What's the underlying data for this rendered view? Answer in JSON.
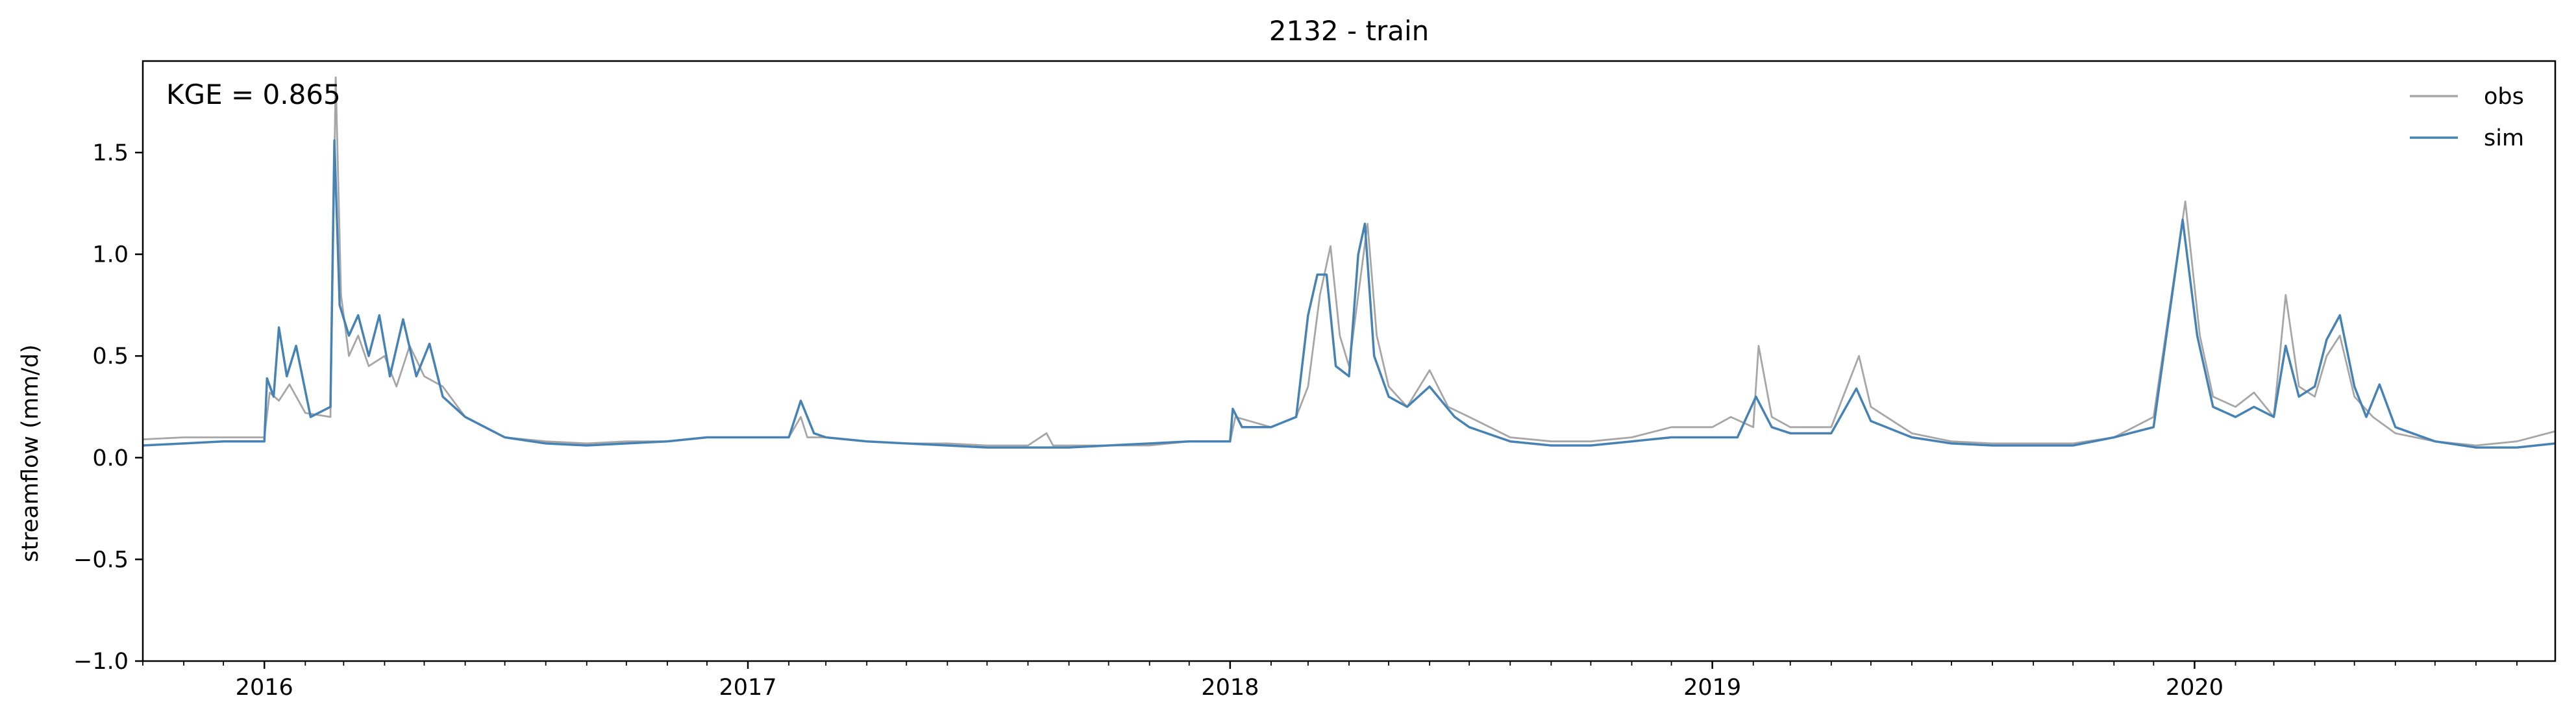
{
  "chart_data": {
    "type": "line",
    "title": "2132 - train",
    "ylabel": "streamflow (mm/d)",
    "xlabel": "",
    "ylim": [
      -1.0,
      1.95
    ],
    "xlim": [
      "2015-10-01",
      "2020-09-30"
    ],
    "yticks": [
      -1.0,
      -0.5,
      0.0,
      0.5,
      1.0,
      1.5
    ],
    "ytick_labels": [
      "−1.0",
      "−0.5",
      "0.0",
      "0.5",
      "1.0",
      "1.5"
    ],
    "xtick_labels": [
      {
        "date": "2016-01-01",
        "label": "2016"
      },
      {
        "date": "2017-01-01",
        "label": "2017"
      },
      {
        "date": "2018-01-01",
        "label": "2018"
      },
      {
        "date": "2019-01-01",
        "label": "2019"
      },
      {
        "date": "2020-01-01",
        "label": "2020"
      }
    ],
    "minor_ticks_monthly": true,
    "grid": false,
    "legend_position": "top-right",
    "annotation": "KGE = 0.865",
    "colors": {
      "obs": "#a6a6a6",
      "sim": "#4682b4"
    },
    "series": [
      {
        "name": "obs",
        "color": "#a6a6a6",
        "points": [
          [
            "2015-10-01",
            0.09
          ],
          [
            "2015-11-01",
            0.1
          ],
          [
            "2015-12-01",
            0.1
          ],
          [
            "2016-01-01",
            0.1
          ],
          [
            "2016-01-05",
            0.32
          ],
          [
            "2016-01-12",
            0.28
          ],
          [
            "2016-01-20",
            0.36
          ],
          [
            "2016-02-01",
            0.22
          ],
          [
            "2016-02-20",
            0.2
          ],
          [
            "2016-02-24",
            1.87
          ],
          [
            "2016-02-28",
            0.8
          ],
          [
            "2016-03-05",
            0.5
          ],
          [
            "2016-03-12",
            0.6
          ],
          [
            "2016-03-20",
            0.45
          ],
          [
            "2016-04-01",
            0.5
          ],
          [
            "2016-04-10",
            0.35
          ],
          [
            "2016-04-20",
            0.55
          ],
          [
            "2016-05-01",
            0.4
          ],
          [
            "2016-05-15",
            0.35
          ],
          [
            "2016-06-01",
            0.2
          ],
          [
            "2016-07-01",
            0.1
          ],
          [
            "2016-08-01",
            0.08
          ],
          [
            "2016-09-01",
            0.07
          ],
          [
            "2016-10-01",
            0.08
          ],
          [
            "2016-11-01",
            0.08
          ],
          [
            "2016-12-01",
            0.1
          ],
          [
            "2017-01-01",
            0.1
          ],
          [
            "2017-02-01",
            0.1
          ],
          [
            "2017-02-10",
            0.2
          ],
          [
            "2017-02-15",
            0.1
          ],
          [
            "2017-03-01",
            0.1
          ],
          [
            "2017-04-01",
            0.08
          ],
          [
            "2017-05-01",
            0.07
          ],
          [
            "2017-06-01",
            0.07
          ],
          [
            "2017-07-01",
            0.06
          ],
          [
            "2017-08-01",
            0.06
          ],
          [
            "2017-08-15",
            0.12
          ],
          [
            "2017-08-20",
            0.06
          ],
          [
            "2017-09-01",
            0.06
          ],
          [
            "2017-10-01",
            0.06
          ],
          [
            "2017-11-01",
            0.06
          ],
          [
            "2017-12-01",
            0.08
          ],
          [
            "2018-01-01",
            0.08
          ],
          [
            "2018-01-05",
            0.2
          ],
          [
            "2018-02-01",
            0.15
          ],
          [
            "2018-02-20",
            0.2
          ],
          [
            "2018-03-01",
            0.35
          ],
          [
            "2018-03-10",
            0.8
          ],
          [
            "2018-03-18",
            1.04
          ],
          [
            "2018-03-25",
            0.6
          ],
          [
            "2018-04-01",
            0.45
          ],
          [
            "2018-04-10",
            0.9
          ],
          [
            "2018-04-15",
            1.15
          ],
          [
            "2018-04-22",
            0.6
          ],
          [
            "2018-05-01",
            0.35
          ],
          [
            "2018-05-15",
            0.25
          ],
          [
            "2018-06-01",
            0.43
          ],
          [
            "2018-06-15",
            0.25
          ],
          [
            "2018-07-01",
            0.2
          ],
          [
            "2018-08-01",
            0.1
          ],
          [
            "2018-09-01",
            0.08
          ],
          [
            "2018-10-01",
            0.08
          ],
          [
            "2018-11-01",
            0.1
          ],
          [
            "2018-12-01",
            0.15
          ],
          [
            "2019-01-01",
            0.15
          ],
          [
            "2019-01-15",
            0.2
          ],
          [
            "2019-02-01",
            0.15
          ],
          [
            "2019-02-05",
            0.55
          ],
          [
            "2019-02-15",
            0.2
          ],
          [
            "2019-03-01",
            0.15
          ],
          [
            "2019-04-01",
            0.15
          ],
          [
            "2019-04-22",
            0.5
          ],
          [
            "2019-05-01",
            0.25
          ],
          [
            "2019-06-01",
            0.12
          ],
          [
            "2019-07-01",
            0.08
          ],
          [
            "2019-08-01",
            0.07
          ],
          [
            "2019-09-01",
            0.07
          ],
          [
            "2019-10-01",
            0.07
          ],
          [
            "2019-11-01",
            0.1
          ],
          [
            "2019-12-01",
            0.2
          ],
          [
            "2019-12-25",
            1.26
          ],
          [
            "2020-01-05",
            0.6
          ],
          [
            "2020-01-15",
            0.3
          ],
          [
            "2020-02-01",
            0.25
          ],
          [
            "2020-02-15",
            0.32
          ],
          [
            "2020-03-01",
            0.2
          ],
          [
            "2020-03-10",
            0.8
          ],
          [
            "2020-03-20",
            0.35
          ],
          [
            "2020-04-01",
            0.3
          ],
          [
            "2020-04-10",
            0.5
          ],
          [
            "2020-04-20",
            0.6
          ],
          [
            "2020-05-01",
            0.3
          ],
          [
            "2020-05-15",
            0.2
          ],
          [
            "2020-06-01",
            0.12
          ],
          [
            "2020-07-01",
            0.08
          ],
          [
            "2020-08-01",
            0.06
          ],
          [
            "2020-09-01",
            0.08
          ],
          [
            "2020-09-30",
            0.13
          ]
        ]
      },
      {
        "name": "sim",
        "color": "#4682b4",
        "points": [
          [
            "2015-10-01",
            0.06
          ],
          [
            "2015-11-01",
            0.07
          ],
          [
            "2015-12-01",
            0.08
          ],
          [
            "2016-01-01",
            0.08
          ],
          [
            "2016-01-03",
            0.39
          ],
          [
            "2016-01-08",
            0.3
          ],
          [
            "2016-01-12",
            0.64
          ],
          [
            "2016-01-18",
            0.4
          ],
          [
            "2016-01-25",
            0.55
          ],
          [
            "2016-02-05",
            0.2
          ],
          [
            "2016-02-20",
            0.25
          ],
          [
            "2016-02-23",
            1.56
          ],
          [
            "2016-02-27",
            0.75
          ],
          [
            "2016-03-05",
            0.6
          ],
          [
            "2016-03-12",
            0.7
          ],
          [
            "2016-03-20",
            0.5
          ],
          [
            "2016-03-28",
            0.7
          ],
          [
            "2016-04-05",
            0.4
          ],
          [
            "2016-04-15",
            0.68
          ],
          [
            "2016-04-25",
            0.4
          ],
          [
            "2016-05-05",
            0.56
          ],
          [
            "2016-05-15",
            0.3
          ],
          [
            "2016-06-01",
            0.2
          ],
          [
            "2016-07-01",
            0.1
          ],
          [
            "2016-08-01",
            0.07
          ],
          [
            "2016-09-01",
            0.06
          ],
          [
            "2016-10-01",
            0.07
          ],
          [
            "2016-11-01",
            0.08
          ],
          [
            "2016-12-01",
            0.1
          ],
          [
            "2017-01-01",
            0.1
          ],
          [
            "2017-02-01",
            0.1
          ],
          [
            "2017-02-10",
            0.28
          ],
          [
            "2017-02-20",
            0.12
          ],
          [
            "2017-03-01",
            0.1
          ],
          [
            "2017-04-01",
            0.08
          ],
          [
            "2017-05-01",
            0.07
          ],
          [
            "2017-06-01",
            0.06
          ],
          [
            "2017-07-01",
            0.05
          ],
          [
            "2017-08-01",
            0.05
          ],
          [
            "2017-09-01",
            0.05
          ],
          [
            "2017-10-01",
            0.06
          ],
          [
            "2017-11-01",
            0.07
          ],
          [
            "2017-12-01",
            0.08
          ],
          [
            "2018-01-01",
            0.08
          ],
          [
            "2018-01-03",
            0.24
          ],
          [
            "2018-01-10",
            0.15
          ],
          [
            "2018-02-01",
            0.15
          ],
          [
            "2018-02-20",
            0.2
          ],
          [
            "2018-03-01",
            0.7
          ],
          [
            "2018-03-08",
            0.9
          ],
          [
            "2018-03-15",
            0.9
          ],
          [
            "2018-03-22",
            0.45
          ],
          [
            "2018-04-01",
            0.4
          ],
          [
            "2018-04-08",
            1.0
          ],
          [
            "2018-04-13",
            1.15
          ],
          [
            "2018-04-20",
            0.5
          ],
          [
            "2018-05-01",
            0.3
          ],
          [
            "2018-05-15",
            0.25
          ],
          [
            "2018-06-01",
            0.35
          ],
          [
            "2018-06-20",
            0.2
          ],
          [
            "2018-07-01",
            0.15
          ],
          [
            "2018-08-01",
            0.08
          ],
          [
            "2018-09-01",
            0.06
          ],
          [
            "2018-10-01",
            0.06
          ],
          [
            "2018-11-01",
            0.08
          ],
          [
            "2018-12-01",
            0.1
          ],
          [
            "2019-01-01",
            0.1
          ],
          [
            "2019-01-20",
            0.1
          ],
          [
            "2019-02-03",
            0.3
          ],
          [
            "2019-02-15",
            0.15
          ],
          [
            "2019-03-01",
            0.12
          ],
          [
            "2019-04-01",
            0.12
          ],
          [
            "2019-04-20",
            0.34
          ],
          [
            "2019-05-01",
            0.18
          ],
          [
            "2019-06-01",
            0.1
          ],
          [
            "2019-07-01",
            0.07
          ],
          [
            "2019-08-01",
            0.06
          ],
          [
            "2019-09-01",
            0.06
          ],
          [
            "2019-10-01",
            0.06
          ],
          [
            "2019-11-01",
            0.1
          ],
          [
            "2019-12-01",
            0.15
          ],
          [
            "2019-12-23",
            1.17
          ],
          [
            "2020-01-03",
            0.6
          ],
          [
            "2020-01-15",
            0.25
          ],
          [
            "2020-02-01",
            0.2
          ],
          [
            "2020-02-15",
            0.25
          ],
          [
            "2020-03-01",
            0.2
          ],
          [
            "2020-03-10",
            0.55
          ],
          [
            "2020-03-20",
            0.3
          ],
          [
            "2020-04-01",
            0.35
          ],
          [
            "2020-04-10",
            0.58
          ],
          [
            "2020-04-20",
            0.7
          ],
          [
            "2020-05-01",
            0.35
          ],
          [
            "2020-05-10",
            0.2
          ],
          [
            "2020-05-20",
            0.36
          ],
          [
            "2020-06-01",
            0.15
          ],
          [
            "2020-07-01",
            0.08
          ],
          [
            "2020-08-01",
            0.05
          ],
          [
            "2020-09-01",
            0.05
          ],
          [
            "2020-09-30",
            0.07
          ]
        ]
      }
    ]
  }
}
